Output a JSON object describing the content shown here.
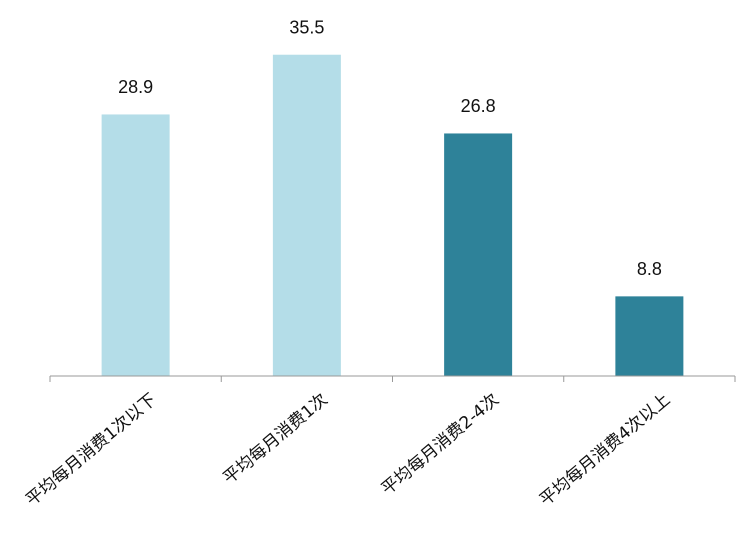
{
  "chart_data": {
    "type": "bar",
    "categories": [
      "平均每月消费1次以下",
      "平均每月消费1次",
      "平均每月消费2-4次",
      "平均每月消费4次以上"
    ],
    "values": [
      28.9,
      35.5,
      26.8,
      8.8
    ],
    "colors": [
      "#b4dde8",
      "#b4dde8",
      "#2e8299",
      "#2e8299"
    ],
    "ylim": [
      0,
      40
    ]
  }
}
